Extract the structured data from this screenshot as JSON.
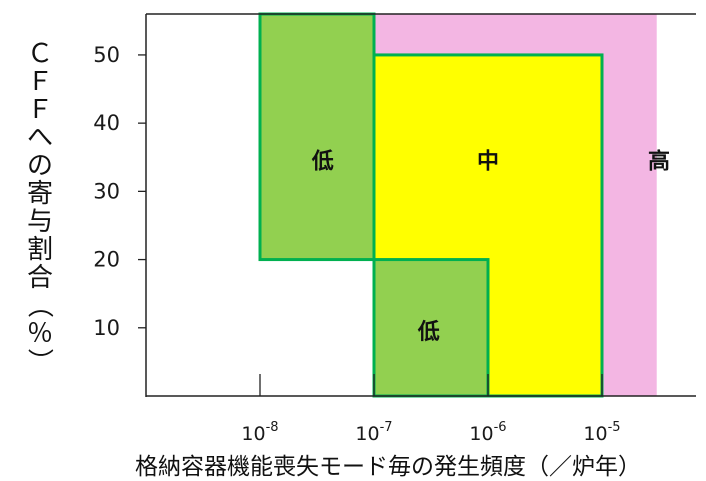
{
  "chart_data": {
    "type": "region-map",
    "xlabel": "格納容器機能喪失モード毎の発生頻度（／炉年）",
    "ylabel": "ＣＦＦへの寄与割合（％）",
    "x_scale": "log",
    "xlim_exponent": [
      -9,
      -4.52
    ],
    "ylim": [
      0,
      56
    ],
    "x_ticks": [
      {
        "base": "10",
        "exp": "-8",
        "value": -8
      },
      {
        "base": "10",
        "exp": "-7",
        "value": -7
      },
      {
        "base": "10",
        "exp": "-6",
        "value": -6
      },
      {
        "base": "10",
        "exp": "-5",
        "value": -5
      }
    ],
    "y_ticks": [
      10,
      20,
      30,
      40,
      50
    ],
    "regions": [
      {
        "label": "高",
        "color": "#f3b6e3",
        "outline": false,
        "x_from": -7,
        "x_to": -4.52,
        "y_from": 0,
        "y_to": 56,
        "label_x": -4.5,
        "label_y": 34.5
      },
      {
        "label": "中",
        "color": "#ffff00",
        "outline": true,
        "x_from": -7,
        "x_to": -5,
        "y_from": 0,
        "y_to": 50,
        "label_x": -6.0,
        "label_y": 34.5
      },
      {
        "label": "低",
        "color": "#92d050",
        "outline": true,
        "x_from": -8,
        "x_to": -7,
        "y_from": 20,
        "y_to": 56,
        "label_x": -7.45,
        "label_y": 34.5
      },
      {
        "label": "低",
        "color": "#92d050",
        "outline": true,
        "x_from": -7,
        "x_to": -6,
        "y_from": 0,
        "y_to": 20,
        "label_x": -6.52,
        "label_y": 9.5
      }
    ],
    "outline_color": "#00b050"
  }
}
